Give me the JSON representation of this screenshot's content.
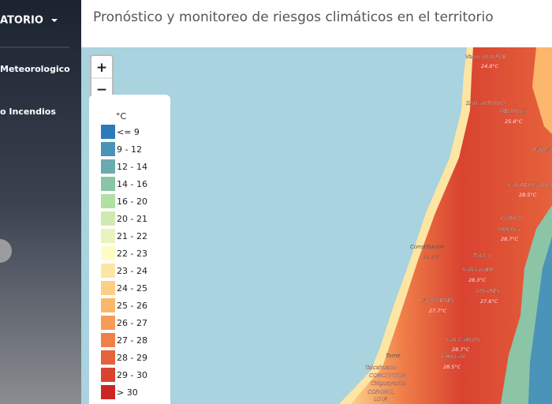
{
  "sidebar": {
    "brand": "ATORIO",
    "items": [
      "Meteorologico",
      "o Incendios"
    ]
  },
  "header": {
    "title": "Pronóstico y monitoreo de riesgos climáticos en el territorio"
  },
  "zoom": {
    "in": "+",
    "out": "−"
  },
  "legend": {
    "unit": "°C",
    "items": [
      {
        "label": "<= 9",
        "color": "#2b7bba"
      },
      {
        "label": "9 - 12",
        "color": "#4a93b9"
      },
      {
        "label": "12 - 14",
        "color": "#6aabb0"
      },
      {
        "label": "14 - 16",
        "color": "#8cc4a6"
      },
      {
        "label": "16 - 20",
        "color": "#b2dfa3"
      },
      {
        "label": "20 - 21",
        "color": "#cfeab0"
      },
      {
        "label": "21 - 22",
        "color": "#e8f4bc"
      },
      {
        "label": "22 - 23",
        "color": "#fefdc6"
      },
      {
        "label": "23 - 24",
        "color": "#fde5a3"
      },
      {
        "label": "24 - 25",
        "color": "#fdcf84"
      },
      {
        "label": "25 - 26",
        "color": "#fbb76b"
      },
      {
        "label": "26 - 27",
        "color": "#f79c58"
      },
      {
        "label": "27 - 28",
        "color": "#f08049"
      },
      {
        "label": "28 - 29",
        "color": "#e5623c"
      },
      {
        "label": "29 - 30",
        "color": "#d94330"
      },
      {
        "label": "> 30",
        "color": "#cc2525"
      }
    ]
  },
  "map_labels": {
    "places": [
      "Valpo QUILPUE",
      "SAN ANTONIO",
      "MELIPILLA",
      "RANCA",
      "SAN FERNANDO",
      "CURICO",
      "MOLINA",
      "Constitucion",
      "TALCA",
      "SAN JAVIER",
      "LINARES",
      "CAUQUENES",
      "SAN CARLOS",
      "CHILLAN",
      "Tome",
      "Talcahuano",
      "CONCEPCION",
      "Chiguayante",
      "CORONEL",
      "LOTA"
    ],
    "temps": [
      "24.8°C",
      "25.8°C",
      "28.5°C",
      "28.7°C",
      "15.3°C",
      "28.3°C",
      "27.6°C",
      "27.7°C",
      "28.7°C",
      "28.5°C"
    ]
  }
}
